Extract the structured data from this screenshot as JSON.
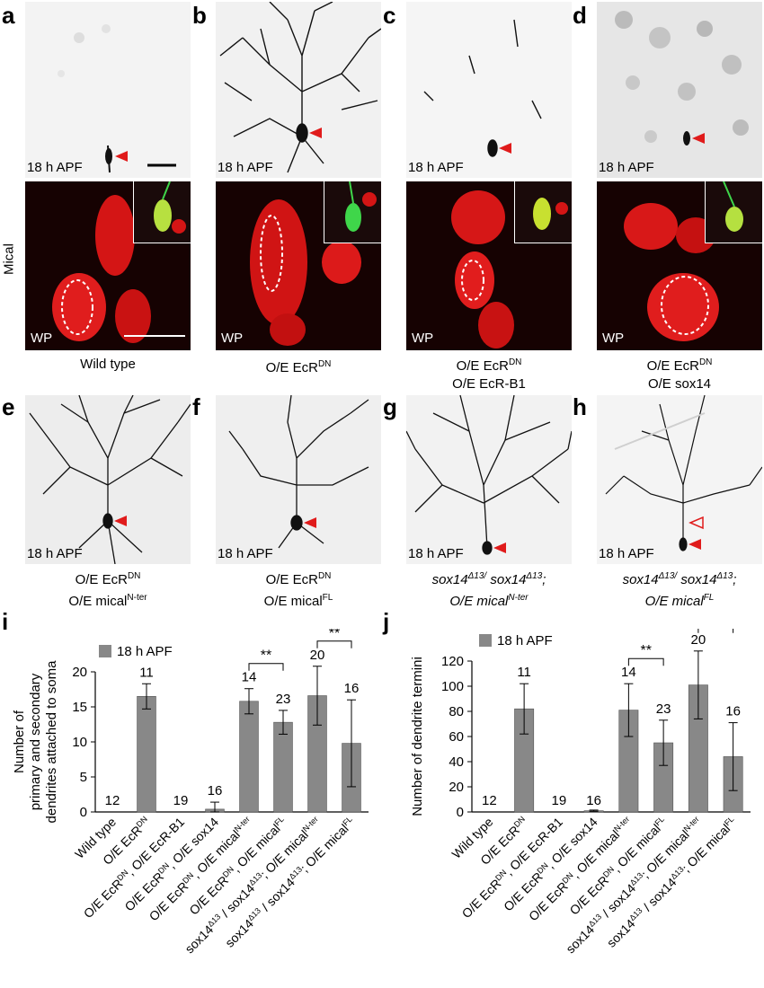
{
  "panel_letters": [
    "a",
    "b",
    "c",
    "d",
    "e",
    "f",
    "g",
    "h",
    "i",
    "j"
  ],
  "row1_time_tags": [
    "18 h APF",
    "18 h APF",
    "18 h APF",
    "18 h APF"
  ],
  "row2_stage_tags": [
    "WP",
    "WP",
    "WP",
    "WP"
  ],
  "side_label": "Mical",
  "row1_captions": [
    {
      "l1": "Wild type",
      "l2": ""
    },
    {
      "l1": "O/E EcR^DN",
      "l2": ""
    },
    {
      "l1": "O/E EcR^DN",
      "l2": "O/E EcR-B1"
    },
    {
      "l1": "O/E EcR^DN",
      "l2": "O/E sox14"
    }
  ],
  "row3_time_tags": [
    "18 h APF",
    "18 h APF",
    "18 h APF",
    "18 h APF"
  ],
  "row3_captions": [
    {
      "l1": "O/E EcR^DN",
      "l2": "O/E mical^N-ter"
    },
    {
      "l1": "O/E EcR^DN",
      "l2": "O/E mical^FL"
    },
    {
      "l1": "sox14^Δ13/ sox14^Δ13;",
      "l2": "O/E mical^N-ter"
    },
    {
      "l1": "sox14^Δ13/ sox14^Δ13;",
      "l2": "O/E mical^FL"
    }
  ],
  "chart_data": [
    {
      "type": "bar",
      "panel": "i",
      "legend": "18 h APF",
      "ylabel": "Number of primary and secondary dendrites attached to soma",
      "ylabel_lines": [
        "Number of",
        "primary and secondary",
        "dendrites attached to soma"
      ],
      "ylim": [
        0,
        20
      ],
      "yticks": [
        0,
        5,
        10,
        15,
        20
      ],
      "categories": [
        "Wild type",
        "O/E EcR^DN",
        "O/E EcR^DN, O/E EcR-B1",
        "O/E EcR^DN, O/E sox14",
        "O/E EcR^DN, O/E mical^N-ter",
        "O/E EcR^DN, O/E mical^FL",
        "sox14^Δ13 / sox14^Δ13; O/E mical^N-ter",
        "sox14^Δ13 / sox14^Δ13; O/E mical^FL"
      ],
      "values": [
        0,
        16.5,
        0,
        0.4,
        15.8,
        12.8,
        16.6,
        9.8
      ],
      "errors": [
        0,
        1.8,
        0,
        1.0,
        1.8,
        1.7,
        4.2,
        6.2
      ],
      "n_labels": [
        "12",
        "11",
        "19",
        "16",
        "14",
        "23",
        "20",
        "16"
      ],
      "significance": [
        {
          "from": 4,
          "to": 5,
          "label": "**"
        },
        {
          "from": 6,
          "to": 7,
          "label": "**"
        }
      ]
    },
    {
      "type": "bar",
      "panel": "j",
      "legend": "18 h APF",
      "ylabel": "Number of dendrite termini",
      "ylabel_lines": [
        "Number of dendrite termini"
      ],
      "ylim": [
        0,
        120
      ],
      "yticks": [
        0,
        20,
        40,
        60,
        80,
        100,
        120
      ],
      "categories": [
        "Wild type",
        "O/E EcR^DN",
        "O/E EcR^DN, O/E EcR-B1",
        "O/E EcR^DN, O/E sox14",
        "O/E EcR^DN, O/E mical^N-ter",
        "O/E EcR^DN, O/E mical^FL",
        "sox14^Δ13 / sox14^Δ13; O/E mical^N-ter",
        "sox14^Δ13 / sox14^Δ13; O/E mical^FL"
      ],
      "values": [
        0,
        82,
        0,
        1,
        81,
        55,
        101,
        44
      ],
      "errors": [
        0,
        20,
        0,
        0.5,
        21,
        18,
        27,
        27
      ],
      "n_labels": [
        "12",
        "11",
        "19",
        "16",
        "14",
        "23",
        "20",
        "16"
      ],
      "significance": [
        {
          "from": 4,
          "to": 5,
          "label": "**"
        },
        {
          "from": 6,
          "to": 7,
          "label": "**"
        }
      ]
    }
  ],
  "colors": {
    "bar": "#888888",
    "error": "#000000",
    "arrow": "#e01b1b",
    "fluor_red": "#e81c1c",
    "fluor_green": "#3fd64a"
  }
}
